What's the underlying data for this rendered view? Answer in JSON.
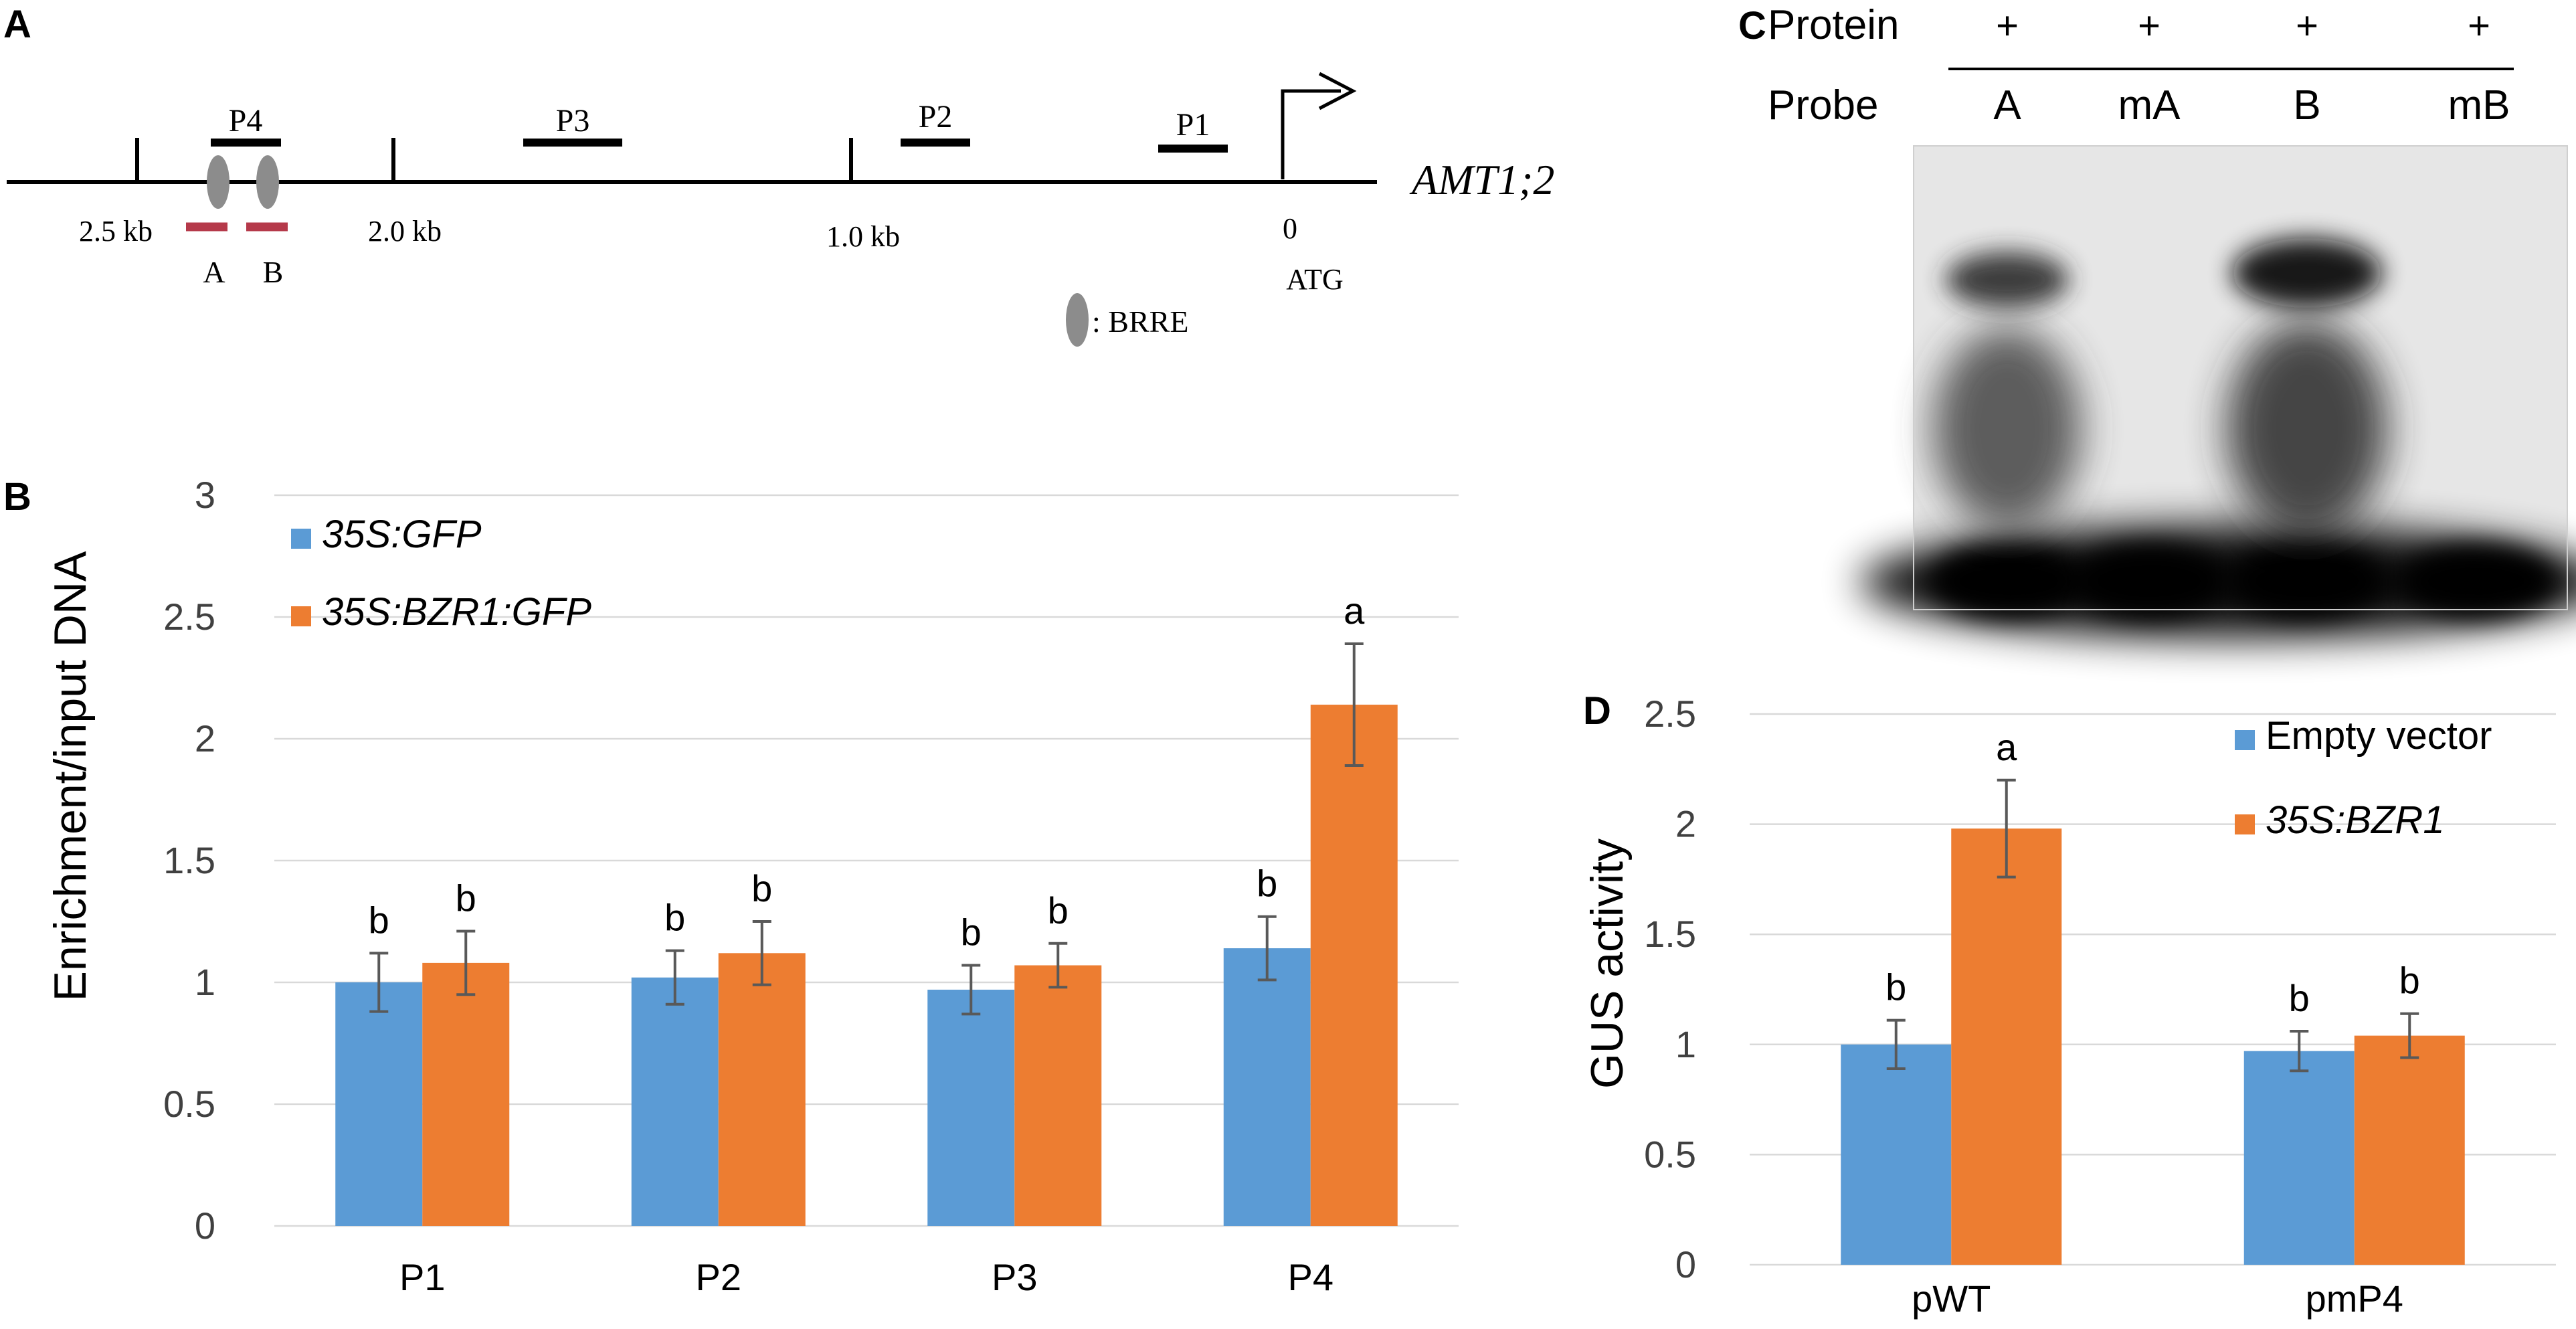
{
  "colors": {
    "blue": "#5B9BD5",
    "orange": "#ED7D31",
    "grid": "#D9D9D9",
    "axis_text": "#404040",
    "probe_red": "#B5394A",
    "brre_gray": "#8C8C8C",
    "err": "#595959"
  },
  "panel_a": {
    "panel_letter": "A",
    "gene_label": "AMT1;2",
    "atg_label": "ATG",
    "tick_labels": [
      "2.5 kb",
      "2.0 kb",
      "1.0 kb",
      "0"
    ],
    "fragments": [
      "P4",
      "P3",
      "P2",
      "P1"
    ],
    "probes": [
      "A",
      "B"
    ],
    "legend": ": BRRE"
  },
  "panel_c": {
    "panel_letter": "C",
    "protein_label": "Protein",
    "probe_label": "Probe",
    "protein_marks": [
      "+",
      "+",
      "+",
      "+"
    ],
    "lanes": [
      "A",
      "mA",
      "B",
      "mB"
    ],
    "shifted_band": [
      true,
      false,
      true,
      false
    ]
  },
  "chart_data": [
    {
      "panel_letter": "B",
      "type": "bar",
      "title": "",
      "xlabel": "",
      "ylabel": "Enrichment/input DNA",
      "ylim": [
        0,
        3
      ],
      "yticks": [
        "0",
        "0.5",
        "1",
        "1.5",
        "2",
        "2.5",
        "3"
      ],
      "categories": [
        "P1",
        "P2",
        "P3",
        "P4"
      ],
      "series": [
        {
          "name": "35S:GFP",
          "values": [
            1.0,
            1.02,
            0.97,
            1.14
          ],
          "errors": [
            0.12,
            0.11,
            0.1,
            0.13
          ],
          "letters": [
            "b",
            "b",
            "b",
            "b"
          ]
        },
        {
          "name": "35S:BZR1:GFP",
          "values": [
            1.08,
            1.12,
            1.07,
            2.14
          ],
          "errors": [
            0.13,
            0.13,
            0.09,
            0.25
          ],
          "letters": [
            "b",
            "b",
            "b",
            "a"
          ]
        }
      ],
      "legend_position": "top-left",
      "grid": true
    },
    {
      "panel_letter": "D",
      "type": "bar",
      "title": "",
      "xlabel": "",
      "ylabel": "GUS activity",
      "ylim": [
        0,
        2.5
      ],
      "yticks": [
        "0",
        "0.5",
        "1",
        "1.5",
        "2",
        "2.5"
      ],
      "categories": [
        "pWT",
        "pmP4"
      ],
      "series": [
        {
          "name": "Empty vector",
          "values": [
            1.0,
            0.97
          ],
          "errors": [
            0.11,
            0.09
          ],
          "letters": [
            "b",
            "b"
          ]
        },
        {
          "name": "35S:BZR1",
          "values": [
            1.98,
            1.04
          ],
          "errors": [
            0.22,
            0.1
          ],
          "letters": [
            "a",
            "b"
          ]
        }
      ],
      "legend_position": "top-right",
      "grid": true
    }
  ]
}
